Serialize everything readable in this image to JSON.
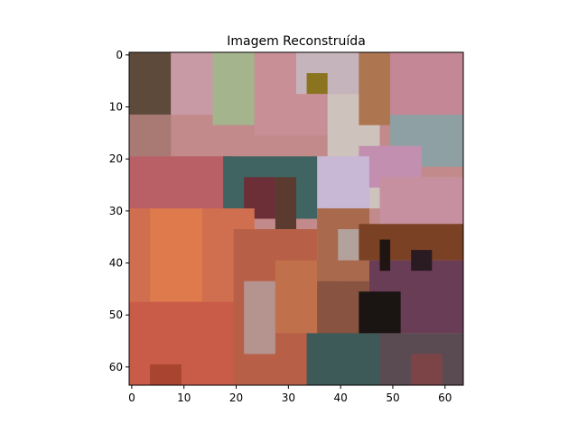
{
  "chart_data": {
    "type": "heatmap",
    "title": "Imagem Reconstruída",
    "xlabel": "",
    "ylabel": "",
    "xlim": [
      -0.5,
      63.5
    ],
    "ylim": [
      63.5,
      -0.5
    ],
    "x_ticks": [
      0,
      10,
      20,
      30,
      40,
      50,
      60
    ],
    "y_ticks": [
      0,
      10,
      20,
      30,
      40,
      50,
      60
    ],
    "grid": false,
    "legend": "none",
    "image": {
      "rows": 64,
      "cols": 64,
      "regions": [
        {
          "x0": 0,
          "y0": 0,
          "x1": 64,
          "y1": 64,
          "color": "#c28a8a"
        },
        {
          "x0": 0,
          "y0": 0,
          "x1": 8,
          "y1": 12,
          "color": "#5e4a3a"
        },
        {
          "x0": 0,
          "y0": 12,
          "x1": 8,
          "y1": 20,
          "color": "#a87a73"
        },
        {
          "x0": 8,
          "y0": 0,
          "x1": 18,
          "y1": 12,
          "color": "#c79aa6"
        },
        {
          "x0": 16,
          "y0": 0,
          "x1": 24,
          "y1": 14,
          "color": "#a4b58e"
        },
        {
          "x0": 24,
          "y0": 0,
          "x1": 40,
          "y1": 16,
          "color": "#c88f97"
        },
        {
          "x0": 32,
          "y0": 0,
          "x1": 44,
          "y1": 8,
          "color": "#c6b4bd"
        },
        {
          "x0": 38,
          "y0": 8,
          "x1": 48,
          "y1": 30,
          "color": "#cec2bd"
        },
        {
          "x0": 44,
          "y0": 0,
          "x1": 50,
          "y1": 14,
          "color": "#ad7550"
        },
        {
          "x0": 50,
          "y0": 0,
          "x1": 64,
          "y1": 14,
          "color": "#c48795"
        },
        {
          "x0": 50,
          "y0": 12,
          "x1": 64,
          "y1": 22,
          "color": "#8fa0a4"
        },
        {
          "x0": 44,
          "y0": 18,
          "x1": 56,
          "y1": 26,
          "color": "#c28fb0"
        },
        {
          "x0": 48,
          "y0": 24,
          "x1": 64,
          "y1": 33,
          "color": "#c690a0"
        },
        {
          "x0": 34,
          "y0": 4,
          "x1": 38,
          "y1": 8,
          "color": "#8a7420"
        },
        {
          "x0": 36,
          "y0": 20,
          "x1": 46,
          "y1": 30,
          "color": "#c9b7d6"
        },
        {
          "x0": 0,
          "y0": 20,
          "x1": 20,
          "y1": 30,
          "color": "#b95f66"
        },
        {
          "x0": 18,
          "y0": 20,
          "x1": 36,
          "y1": 32,
          "color": "#3f6461"
        },
        {
          "x0": 22,
          "y0": 24,
          "x1": 28,
          "y1": 32,
          "color": "#6c2f37"
        },
        {
          "x0": 28,
          "y0": 24,
          "x1": 32,
          "y1": 34,
          "color": "#5b3a30"
        },
        {
          "x0": 0,
          "y0": 30,
          "x1": 24,
          "y1": 64,
          "color": "#d06e50"
        },
        {
          "x0": 4,
          "y0": 30,
          "x1": 14,
          "y1": 48,
          "color": "#de7a4c"
        },
        {
          "x0": 0,
          "y0": 48,
          "x1": 24,
          "y1": 64,
          "color": "#c95b49"
        },
        {
          "x0": 20,
          "y0": 34,
          "x1": 36,
          "y1": 64,
          "color": "#b86047"
        },
        {
          "x0": 22,
          "y0": 44,
          "x1": 28,
          "y1": 58,
          "color": "#b59490"
        },
        {
          "x0": 28,
          "y0": 40,
          "x1": 40,
          "y1": 54,
          "color": "#c1704c"
        },
        {
          "x0": 36,
          "y0": 30,
          "x1": 46,
          "y1": 44,
          "color": "#a9694c"
        },
        {
          "x0": 40,
          "y0": 34,
          "x1": 46,
          "y1": 40,
          "color": "#b3a29b"
        },
        {
          "x0": 44,
          "y0": 33,
          "x1": 64,
          "y1": 40,
          "color": "#7b4124"
        },
        {
          "x0": 46,
          "y0": 40,
          "x1": 64,
          "y1": 54,
          "color": "#6a3d56"
        },
        {
          "x0": 36,
          "y0": 44,
          "x1": 46,
          "y1": 64,
          "color": "#885340"
        },
        {
          "x0": 34,
          "y0": 54,
          "x1": 50,
          "y1": 64,
          "color": "#3d5a58"
        },
        {
          "x0": 48,
          "y0": 54,
          "x1": 64,
          "y1": 64,
          "color": "#5a4a52"
        },
        {
          "x0": 44,
          "y0": 46,
          "x1": 52,
          "y1": 54,
          "color": "#1a1412"
        },
        {
          "x0": 48,
          "y0": 36,
          "x1": 50,
          "y1": 42,
          "color": "#1f1512"
        },
        {
          "x0": 54,
          "y0": 38,
          "x1": 58,
          "y1": 42,
          "color": "#2a1b22"
        },
        {
          "x0": 54,
          "y0": 58,
          "x1": 60,
          "y1": 64,
          "color": "#7d4447"
        },
        {
          "x0": 4,
          "y0": 60,
          "x1": 10,
          "y1": 64,
          "color": "#a8442f"
        }
      ]
    }
  }
}
